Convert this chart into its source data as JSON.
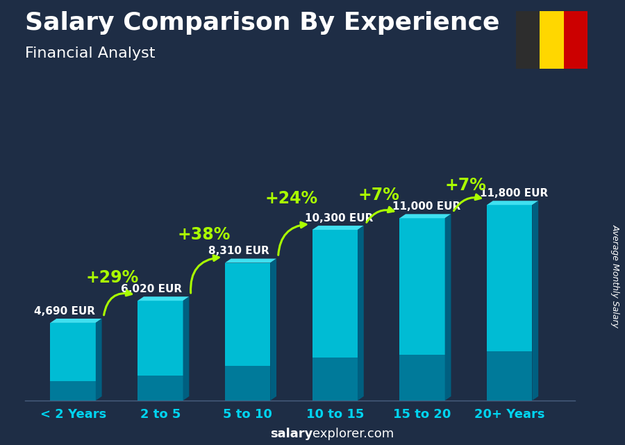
{
  "title": "Salary Comparison By Experience",
  "subtitle": "Financial Analyst",
  "categories": [
    "< 2 Years",
    "2 to 5",
    "5 to 10",
    "10 to 15",
    "15 to 20",
    "20+ Years"
  ],
  "values": [
    4690,
    6020,
    8310,
    10300,
    11000,
    11800
  ],
  "labels": [
    "4,690 EUR",
    "6,020 EUR",
    "8,310 EUR",
    "10,300 EUR",
    "11,000 EUR",
    "11,800 EUR"
  ],
  "pct_labels": [
    "+29%",
    "+38%",
    "+24%",
    "+7%",
    "+7%"
  ],
  "bar_color_face": "#00bcd4",
  "bar_color_dark": "#007a9a",
  "bar_color_side": "#005f80",
  "bar_color_top": "#40e0f0",
  "background_color": "#1e2d45",
  "text_color_white": "#ffffff",
  "text_color_cyan": "#00d4f0",
  "text_color_green": "#aaff00",
  "ylabel": "Average Monthly Salary",
  "ylim": [
    0,
    14500
  ],
  "flag_colors": [
    "#2d2d2d",
    "#FFD700",
    "#CC0000"
  ],
  "title_fontsize": 26,
  "subtitle_fontsize": 16,
  "label_fontsize": 11,
  "pct_fontsize": 17,
  "footer_bold": "salary",
  "footer_regular": "explorer.com",
  "footer_fontsize": 13,
  "xlabel_fontsize": 13
}
